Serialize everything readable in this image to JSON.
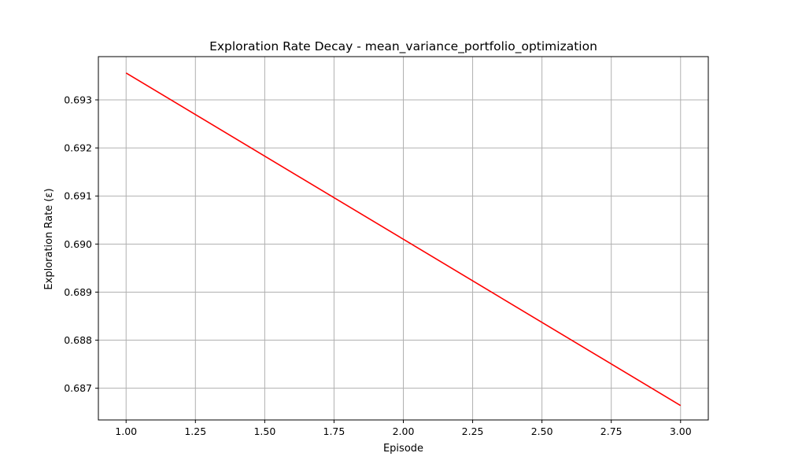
{
  "chart_data": {
    "type": "line",
    "title": "Exploration Rate Decay - mean_variance_portfolio_optimization",
    "xlabel": "Episode",
    "ylabel": "Exploration Rate (ε)",
    "x": [
      1,
      2,
      3
    ],
    "series": [
      {
        "values": [
          0.69356,
          0.6901,
          0.68664
        ],
        "color": "#ff0000"
      }
    ],
    "xlim": [
      0.9,
      3.1
    ],
    "ylim": [
      0.68634,
      0.6939
    ],
    "xticks": [
      "1.00",
      "1.25",
      "1.50",
      "1.75",
      "2.00",
      "2.25",
      "2.50",
      "2.75",
      "3.00"
    ],
    "yticks": [
      "0.687",
      "0.688",
      "0.689",
      "0.690",
      "0.691",
      "0.692",
      "0.693"
    ],
    "grid": true,
    "grid_color": "#b0b0b0",
    "legend": "none"
  }
}
